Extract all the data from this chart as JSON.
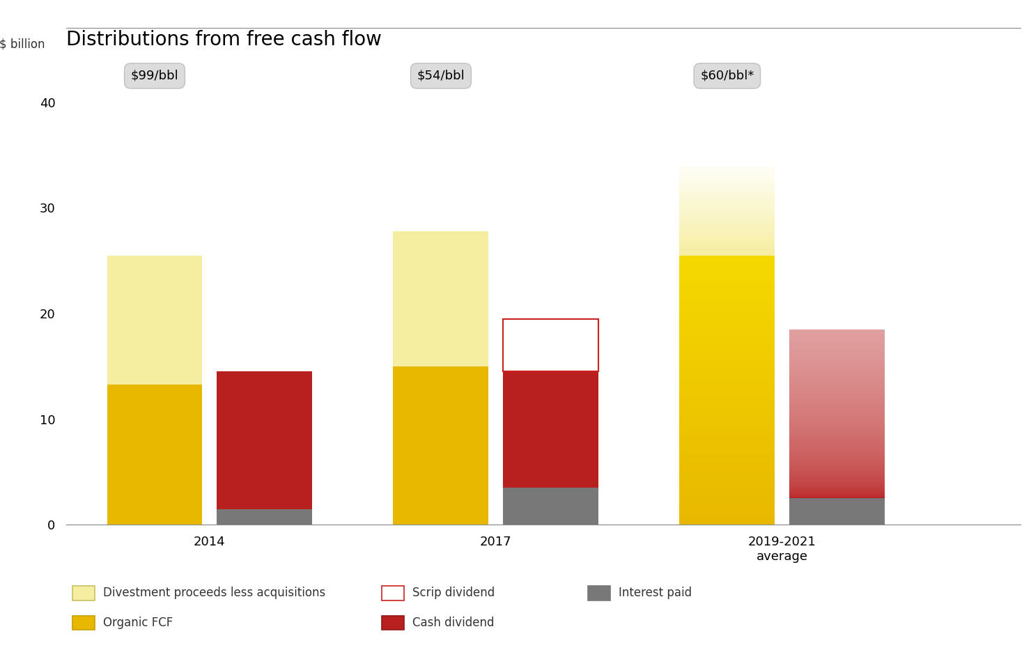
{
  "title": "Distributions from free cash flow",
  "ylabel": "$ billion",
  "background_color": "#ffffff",
  "ylim": [
    0,
    44
  ],
  "yticks": [
    0,
    10,
    20,
    30,
    40
  ],
  "groups": [
    "2014",
    "2017",
    "2019-2021\naverage"
  ],
  "group_centers": [
    1.5,
    4.5,
    7.5
  ],
  "bar_width": 1.0,
  "bar_gap": 0.15,
  "price_labels": [
    "$99/bbl",
    "$54/bbl",
    "$60/bbl*"
  ],
  "price_y": 42.5,
  "left_bars": {
    "organic_fcf": [
      13.3,
      15.0,
      25.5
    ],
    "divestment": [
      12.2,
      12.8,
      8.5
    ],
    "organic_fcf_color": "#E8B800",
    "divestment_color": "#F5EDA0",
    "divestment_color_fade": "#FEFEF8"
  },
  "right_bars": {
    "interest_paid": [
      1.5,
      3.5,
      2.5
    ],
    "cash_dividend": [
      13.0,
      11.0,
      16.0
    ],
    "scrip_dividend": [
      0,
      5.0,
      0
    ],
    "interest_paid_color": "#787878",
    "cash_dividend_color": "#B82020",
    "cash_dividend_color_fade": "#E08080",
    "scrip_color_edge": "#CC2020",
    "scrip_fill": "#ffffff"
  },
  "xlim": [
    0,
    10
  ],
  "title_fontsize": 20,
  "tick_fontsize": 13,
  "legend_fontsize": 12
}
